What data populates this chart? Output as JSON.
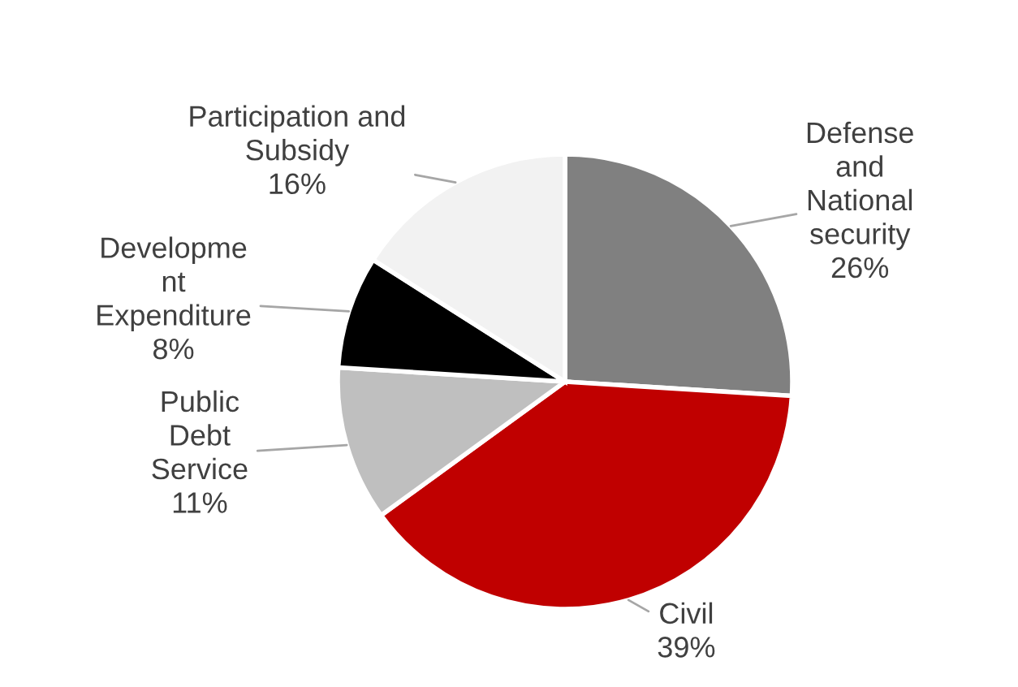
{
  "chart_data": {
    "type": "pie",
    "categories": [
      "Defense\nand\nNational\nsecurity",
      "Civil",
      "Public\nDebt\nService",
      "Developme\nnt\nExpenditure",
      "Participation and\nSubsidy"
    ],
    "values": [
      26,
      39,
      11,
      8,
      16
    ],
    "value_labels": [
      "26%",
      "39%",
      "11%",
      "8%",
      "16%"
    ],
    "colors": [
      "#808080",
      "#c00000",
      "#bfbfbf",
      "#000000",
      "#f2f2f2"
    ],
    "legend": false
  }
}
